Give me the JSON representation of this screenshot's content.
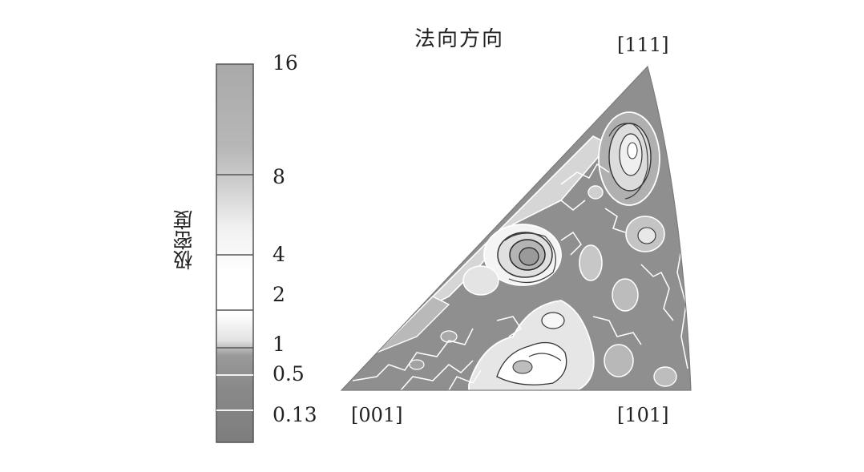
{
  "chart_data": {
    "type": "heatmap",
    "title": "法向方向",
    "colorbar": {
      "label": "极密度",
      "ticks": [
        "16",
        "8",
        "4",
        "2",
        "1",
        "0.5",
        "0.13"
      ],
      "levels": [
        16,
        8,
        4,
        2,
        1,
        0.5,
        0.13
      ]
    },
    "corners": {
      "top": "[111]",
      "bottom_left": "[001]",
      "bottom_right": "[101]"
    },
    "peaks": [
      {
        "region": "near [111]",
        "max_level": 16
      },
      {
        "region": "center",
        "max_level": 16
      },
      {
        "region": "lower-middle",
        "max_level": 8
      }
    ]
  }
}
